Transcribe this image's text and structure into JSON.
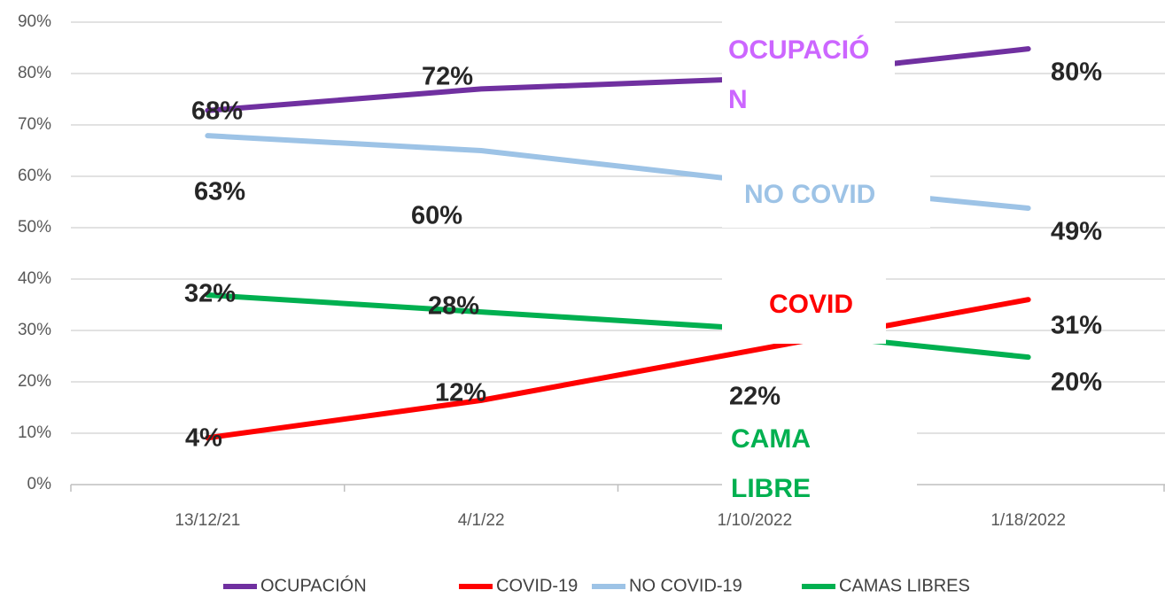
{
  "chart_data": {
    "type": "line",
    "categories": [
      "13/12/21",
      "4/1/22",
      "1/10/2022",
      "1/18/2022"
    ],
    "series": [
      {
        "name": "OCUPACIÓN",
        "color": "#7030a0",
        "values": [
          72.8,
          77,
          79,
          84.8
        ]
      },
      {
        "name": "COVID-19",
        "color": "#ff0000",
        "values": [
          9.1,
          16.4,
          26.2,
          36
        ]
      },
      {
        "name": "NO COVID-19",
        "color": "#9dc3e6",
        "values": [
          67.9,
          65,
          59,
          53.8
        ]
      },
      {
        "name": "CAMAS LIBRES",
        "color": "#00b050",
        "values": [
          36.9,
          33.6,
          30.3,
          24.8
        ]
      }
    ],
    "ylim": [
      0,
      90
    ],
    "yticks": [
      {
        "value": 0,
        "label": "0%"
      },
      {
        "value": 10,
        "label": "10%"
      },
      {
        "value": 20,
        "label": "20%"
      },
      {
        "value": 30,
        "label": "30%"
      },
      {
        "value": 40,
        "label": "40%"
      },
      {
        "value": 50,
        "label": "50%"
      },
      {
        "value": 60,
        "label": "60%"
      },
      {
        "value": 70,
        "label": "70%"
      },
      {
        "value": 80,
        "label": "80%"
      },
      {
        "value": 90,
        "label": "90%"
      }
    ],
    "grid": true,
    "legend": "bottom",
    "annotations": [
      "68%",
      "72%",
      "80%",
      "63%",
      "60%",
      "49%",
      "32%",
      "28%",
      "31%",
      "20%",
      "4%",
      "12%",
      "22%"
    ],
    "box_labels": [
      {
        "lines": [
          "OCUPACIÓ",
          "N"
        ],
        "color": "#cc66ff"
      },
      {
        "lines": [
          "NO COVID"
        ],
        "color": "#9dc3e6"
      },
      {
        "lines": [
          "COVID"
        ],
        "color": "#ff0000"
      },
      {
        "lines": [
          "CAMA",
          "LIBRE"
        ],
        "color": "#00b050"
      }
    ]
  }
}
